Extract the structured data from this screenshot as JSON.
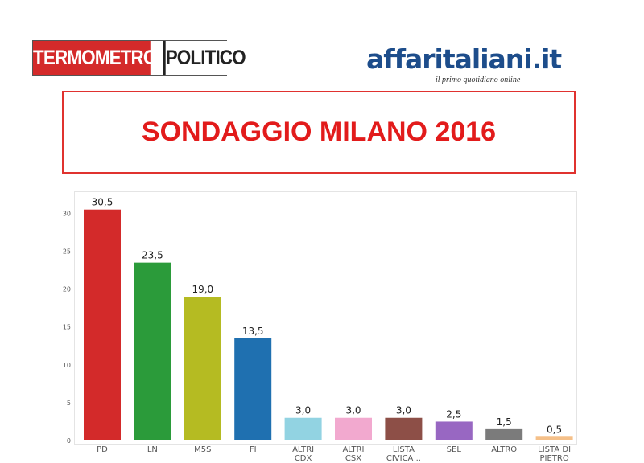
{
  "header": {
    "left_logo": {
      "part1": "TERMOMETRO",
      "part2": "POLITICO"
    },
    "right_logo": {
      "name": "affaritaliani.it",
      "tagline": "il primo quotidiano online"
    }
  },
  "title": "SONDAGGIO MILANO 2016",
  "chart_data": {
    "type": "bar",
    "title": "",
    "xlabel": "",
    "ylabel": "",
    "ylim": [
      0,
      31
    ],
    "yticks": [
      0,
      5,
      10,
      15,
      20,
      25,
      30
    ],
    "grid": false,
    "categories": [
      [
        "PD"
      ],
      [
        "LN"
      ],
      [
        "M5S"
      ],
      [
        "FI"
      ],
      [
        "ALTRI",
        "CDX"
      ],
      [
        "ALTRI",
        "CSX"
      ],
      [
        "LISTA",
        "CIVICA .."
      ],
      [
        "SEL"
      ],
      [
        "ALTRO"
      ],
      [
        "LISTA DI",
        "PIETRO"
      ]
    ],
    "values": [
      30.5,
      23.5,
      19.0,
      13.5,
      3.0,
      3.0,
      3.0,
      2.5,
      1.5,
      0.5
    ],
    "value_labels": [
      "30,5",
      "23,5",
      "19,0",
      "13,5",
      "3,0",
      "3,0",
      "3,0",
      "2,5",
      "1,5",
      "0,5"
    ],
    "colors": [
      "#d32a2a",
      "#2b9b3a",
      "#b5bb22",
      "#1f70b0",
      "#92d3e2",
      "#f2a9cf",
      "#8d4f47",
      "#9867c2",
      "#7b7b7b",
      "#f5c089"
    ]
  }
}
